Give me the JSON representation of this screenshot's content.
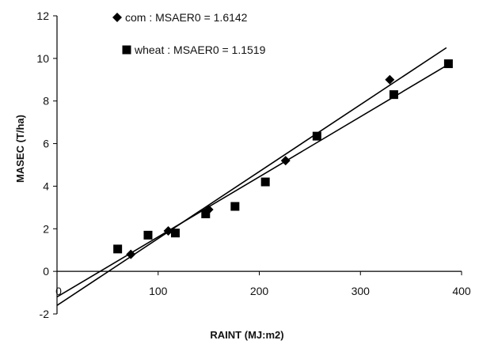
{
  "chart_data": {
    "type": "scatter",
    "xlabel": "RAINT (MJ:m2)",
    "ylabel": "MASEC (T/ha)",
    "xlim": [
      0,
      400
    ],
    "ylim": [
      -2,
      12
    ],
    "x_ticks": [
      0,
      100,
      200,
      300,
      400
    ],
    "y_ticks": [
      -2,
      0,
      2,
      4,
      6,
      8,
      10,
      12
    ],
    "grid": false,
    "legend_position": "top-left",
    "series": [
      {
        "name": "com : MSAER0 = 1.6142",
        "marker": "diamond",
        "points": [
          {
            "x": 73,
            "y": 0.8
          },
          {
            "x": 110,
            "y": 1.9
          },
          {
            "x": 150,
            "y": 2.9
          },
          {
            "x": 226,
            "y": 5.2
          },
          {
            "x": 329,
            "y": 9.0
          }
        ],
        "regression_line": {
          "x": [
            0,
            385
          ],
          "y": [
            -1.6,
            10.5
          ]
        }
      },
      {
        "name": "wheat : MSAER0 = 1.1519",
        "marker": "square",
        "points": [
          {
            "x": 60,
            "y": 1.05
          },
          {
            "x": 90,
            "y": 1.7
          },
          {
            "x": 117,
            "y": 1.8
          },
          {
            "x": 147,
            "y": 2.7
          },
          {
            "x": 176,
            "y": 3.05
          },
          {
            "x": 206,
            "y": 4.2
          },
          {
            "x": 257,
            "y": 6.35
          },
          {
            "x": 333,
            "y": 8.3
          },
          {
            "x": 387,
            "y": 9.75
          }
        ],
        "regression_line": {
          "x": [
            0,
            390
          ],
          "y": [
            -1.2,
            9.8
          ]
        }
      }
    ]
  }
}
